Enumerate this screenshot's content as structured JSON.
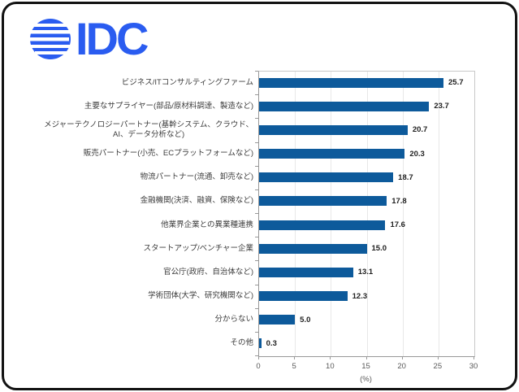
{
  "logo": {
    "text": "IDC"
  },
  "colors": {
    "logo_blue": "#2A5CF0",
    "bar_blue": "#0D5A9B",
    "grid": "#E8E8E8",
    "axis": "#999999"
  },
  "chart_data": {
    "type": "bar",
    "orientation": "horizontal",
    "title": "",
    "categories": [
      "ビジネス/ITコンサルティングファーム",
      "主要なサプライヤー(部品/原材料調達、製造など)",
      "メジャーテクノロジーパートナー(基幹システム、クラウド、\nAI、データ分析など)",
      "販売パートナー(小売、ECプラットフォームなど)",
      "物流パートナー(流通、卸売など)",
      "金融機関(決済、融資、保険など)",
      "他業界企業との異業種連携",
      "スタートアップ/ベンチャー企業",
      "官公庁(政府、自治体など)",
      "学術団体(大学、研究機関など)",
      "分からない",
      "その他"
    ],
    "values": [
      25.7,
      23.7,
      20.7,
      20.3,
      18.7,
      17.8,
      17.6,
      15.0,
      13.1,
      12.3,
      5.0,
      0.3
    ],
    "value_labels": [
      "25.7",
      "23.7",
      "20.7",
      "20.3",
      "18.7",
      "17.8",
      "17.6",
      "15.0",
      "13.1",
      "12.3",
      "5.0",
      "0.3"
    ],
    "xlabel": "(%)",
    "xlim": [
      0,
      30
    ],
    "xticks": [
      "0",
      "5",
      "10",
      "15",
      "20",
      "25",
      "30"
    ],
    "grid": "vertical",
    "legend": "none",
    "bar_color": "#0D5A9B"
  }
}
